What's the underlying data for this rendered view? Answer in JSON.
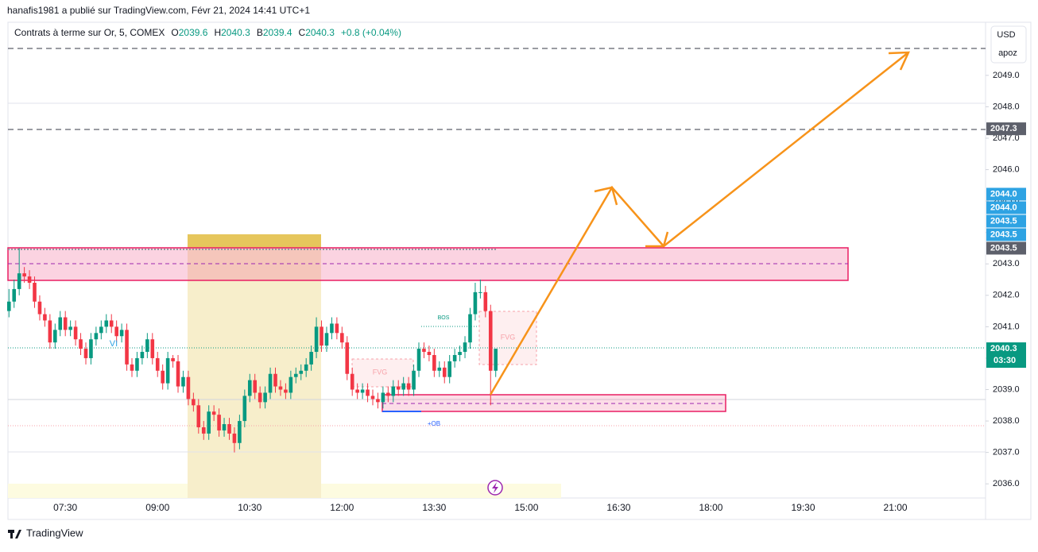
{
  "header": "hanafis1981 a publié sur TradingView.com, Févr 21, 2024 14:41 UTC+1",
  "chart_data": {
    "type": "candlestick",
    "title": "Contrats à terme sur Or, 5, COMEX",
    "ohlc_legend": [
      {
        "label": "O",
        "value": 2039.6
      },
      {
        "label": "H",
        "value": 2040.3
      },
      {
        "label": "B",
        "value": 2039.4
      },
      {
        "label": "C",
        "value": 2040.3
      }
    ],
    "change": "+0.8 (+0.04%)",
    "currency": "USD",
    "scale_label": "apoz",
    "x": [
      "06:35",
      "06:40",
      "06:45",
      "06:50",
      "06:55",
      "07:00",
      "07:05",
      "07:10",
      "07:15",
      "07:20",
      "07:25",
      "07:30",
      "07:35",
      "07:40",
      "07:45",
      "07:50",
      "07:55",
      "08:00",
      "08:05",
      "08:10",
      "08:15",
      "08:20",
      "08:25",
      "08:30",
      "08:35",
      "08:40",
      "08:45",
      "08:50",
      "08:55",
      "09:00",
      "09:05",
      "09:10",
      "09:15",
      "09:20",
      "09:25",
      "09:30",
      "09:35",
      "09:40",
      "09:45",
      "09:50",
      "09:55",
      "10:00",
      "10:05",
      "10:10",
      "10:15",
      "10:20",
      "10:25",
      "10:30",
      "10:35",
      "10:40",
      "10:45",
      "10:50",
      "10:55",
      "11:00",
      "11:05",
      "11:10",
      "11:15",
      "11:20",
      "11:25",
      "11:30",
      "11:35",
      "11:40",
      "11:45",
      "11:50",
      "11:55",
      "12:00",
      "12:05",
      "12:10",
      "12:15",
      "12:20",
      "12:25",
      "12:30",
      "12:35",
      "12:40",
      "12:45",
      "12:50",
      "12:55",
      "13:00",
      "13:05",
      "13:10",
      "13:15",
      "13:20",
      "13:25",
      "13:30",
      "13:35",
      "13:40",
      "13:45",
      "13:50",
      "13:55",
      "14:00",
      "14:05",
      "14:10",
      "14:15",
      "14:20",
      "14:25",
      "14:30"
    ],
    "open": [
      2041.5,
      2041.8,
      2042.2,
      2042.7,
      2042.6,
      2042.4,
      2041.8,
      2041.4,
      2041.2,
      2040.5,
      2040.9,
      2041.3,
      2040.9,
      2041.0,
      2040.6,
      2040.3,
      2040.0,
      2040.6,
      2040.8,
      2041.0,
      2041.2,
      2041.0,
      2040.7,
      2040.9,
      2039.8,
      2039.6,
      2040.0,
      2040.2,
      2040.6,
      2040.0,
      2039.6,
      2039.2,
      2040.0,
      2039.9,
      2039.1,
      2039.4,
      2038.7,
      2038.5,
      2037.8,
      2037.6,
      2038.3,
      2038.2,
      2037.7,
      2037.9,
      2037.6,
      2037.3,
      2038.0,
      2038.8,
      2039.3,
      2038.9,
      2038.6,
      2038.9,
      2039.5,
      2039.1,
      2039.0,
      2038.9,
      2039.4,
      2039.5,
      2039.6,
      2039.8,
      2040.2,
      2041.0,
      2040.4,
      2040.8,
      2041.1,
      2040.8,
      2040.5,
      2039.5,
      2039.0,
      2038.9,
      2039.0,
      2038.8,
      2038.7,
      2038.6,
      2038.9,
      2038.8,
      2039.1,
      2039.0,
      2039.2,
      2039.0,
      2039.6,
      2040.3,
      2040.2,
      2040.1,
      2039.6,
      2039.7,
      2039.4,
      2039.9,
      2040.1,
      2040.2,
      2040.5,
      2041.4,
      2042.1,
      2042.1,
      2041.5,
      2039.6
    ],
    "high": [
      2042.2,
      2042.5,
      2043.5,
      2042.9,
      2042.8,
      2042.6,
      2042.0,
      2041.6,
      2041.4,
      2041.1,
      2041.5,
      2041.5,
      2041.2,
      2041.2,
      2040.8,
      2040.5,
      2040.8,
      2041.0,
      2041.2,
      2041.4,
      2041.4,
      2041.2,
      2041.1,
      2041.1,
      2040.0,
      2040.2,
      2040.4,
      2040.8,
      2040.8,
      2040.2,
      2039.8,
      2040.2,
      2040.1,
      2040.1,
      2039.6,
      2039.6,
      2038.9,
      2038.7,
      2038.0,
      2038.5,
      2038.5,
      2038.4,
      2038.1,
      2038.1,
      2037.8,
      2038.2,
      2039.0,
      2039.5,
      2039.5,
      2039.1,
      2039.1,
      2039.7,
      2039.7,
      2039.3,
      2039.2,
      2039.6,
      2039.7,
      2039.8,
      2040.0,
      2040.4,
      2041.3,
      2041.2,
      2041.0,
      2041.3,
      2041.3,
      2041.0,
      2040.7,
      2039.7,
      2039.2,
      2039.2,
      2039.2,
      2039.0,
      2038.9,
      2039.1,
      2039.1,
      2039.3,
      2039.3,
      2039.4,
      2039.4,
      2039.8,
      2040.5,
      2040.5,
      2040.4,
      2040.3,
      2039.9,
      2039.9,
      2040.1,
      2040.3,
      2040.4,
      2040.7,
      2041.6,
      2042.4,
      2042.5,
      2042.3,
      2041.7,
      2040.3
    ],
    "low": [
      2041.3,
      2041.6,
      2042.0,
      2042.4,
      2042.2,
      2041.6,
      2041.2,
      2041.0,
      2040.3,
      2040.3,
      2040.7,
      2040.7,
      2040.7,
      2040.4,
      2040.1,
      2039.8,
      2039.8,
      2040.4,
      2040.6,
      2040.8,
      2040.8,
      2040.5,
      2040.5,
      2039.6,
      2039.4,
      2039.4,
      2039.8,
      2040.0,
      2039.8,
      2039.4,
      2039.0,
      2039.0,
      2039.7,
      2038.9,
      2038.9,
      2038.5,
      2038.3,
      2037.6,
      2037.4,
      2037.4,
      2038.0,
      2037.5,
      2037.5,
      2037.4,
      2037.0,
      2037.1,
      2037.8,
      2038.6,
      2038.7,
      2038.4,
      2038.4,
      2038.7,
      2038.9,
      2038.8,
      2038.7,
      2038.7,
      2039.2,
      2039.3,
      2039.4,
      2039.6,
      2040.0,
      2040.2,
      2040.2,
      2040.6,
      2040.6,
      2040.3,
      2039.3,
      2038.8,
      2038.7,
      2038.7,
      2038.6,
      2038.5,
      2038.4,
      2038.4,
      2038.6,
      2038.6,
      2038.8,
      2038.8,
      2038.8,
      2038.8,
      2039.4,
      2040.0,
      2039.9,
      2039.4,
      2039.4,
      2039.2,
      2039.2,
      2039.7,
      2039.9,
      2040.0,
      2040.3,
      2041.2,
      2041.9,
      2041.3,
      2038.5,
      2039.4
    ],
    "close": [
      2041.8,
      2042.2,
      2042.7,
      2042.6,
      2042.4,
      2041.8,
      2041.4,
      2041.2,
      2040.5,
      2040.9,
      2041.3,
      2040.9,
      2041.0,
      2040.6,
      2040.3,
      2040.0,
      2040.6,
      2040.8,
      2041.0,
      2041.2,
      2041.0,
      2040.7,
      2040.9,
      2039.8,
      2039.6,
      2040.0,
      2040.2,
      2040.6,
      2040.0,
      2039.6,
      2039.2,
      2040.0,
      2039.9,
      2039.1,
      2039.4,
      2038.7,
      2038.5,
      2037.8,
      2037.6,
      2038.3,
      2038.2,
      2037.7,
      2037.9,
      2037.6,
      2037.3,
      2038.0,
      2038.8,
      2039.3,
      2038.9,
      2038.6,
      2038.9,
      2039.5,
      2039.1,
      2039.0,
      2038.9,
      2039.4,
      2039.5,
      2039.6,
      2039.8,
      2040.2,
      2041.0,
      2040.4,
      2040.8,
      2041.1,
      2040.8,
      2040.5,
      2039.5,
      2039.0,
      2038.9,
      2039.0,
      2038.8,
      2038.7,
      2038.6,
      2038.9,
      2038.8,
      2039.1,
      2039.0,
      2039.2,
      2039.0,
      2039.6,
      2040.3,
      2040.2,
      2040.1,
      2039.6,
      2039.7,
      2039.4,
      2039.9,
      2040.1,
      2040.2,
      2040.5,
      2041.4,
      2042.1,
      2042.1,
      2041.5,
      2039.6,
      2040.3
    ],
    "colors": {
      "up": "#089981",
      "down": "#f23645"
    },
    "xlim": [
      "06:34",
      "22:28"
    ],
    "ylim": [
      2035.55,
      2050.64
    ],
    "xticks": [
      "07:30",
      "09:00",
      "10:30",
      "12:00",
      "13:30",
      "15:00",
      "16:30",
      "18:00",
      "19:30",
      "21:00"
    ],
    "yticks": [
      {
        "value": 2036,
        "label": "2036.0"
      },
      {
        "value": 2037,
        "label": "2037.0"
      },
      {
        "value": 2038,
        "label": "2038.0"
      },
      {
        "value": 2039,
        "label": "2039.0"
      },
      {
        "value": 2040,
        "label": "2040.0"
      },
      {
        "value": 2041,
        "label": "2041.0"
      },
      {
        "value": 2042,
        "label": "2042.0"
      },
      {
        "value": 2043,
        "label": "2043.0"
      },
      {
        "value": 2044,
        "label": "2044.0"
      },
      {
        "value": 2045,
        "label": "2045.0"
      },
      {
        "value": 2046,
        "label": "2046.0"
      },
      {
        "value": 2047,
        "label": "2047.0"
      },
      {
        "value": 2048,
        "label": "2048.0"
      },
      {
        "value": 2049,
        "label": "2049.0"
      }
    ],
    "price_tags": [
      {
        "value": 2047.3,
        "label": "2047.3",
        "color": "#5d606b"
      },
      {
        "value": 2044,
        "label": "2044.0",
        "color": "#2ea3e3"
      },
      {
        "value": 2044,
        "label": "2044.0",
        "color": "#2ea3e3"
      },
      {
        "value": 2043.5,
        "label": "2043.5",
        "color": "#2ea3e3"
      },
      {
        "value": 2043.5,
        "label": "2043.5",
        "color": "#2ea3e3"
      },
      {
        "value": 2043.5,
        "label": "2043.5",
        "color": "#5d606b"
      },
      {
        "value": 2040.3,
        "label": "2040.3",
        "color": "#089981"
      }
    ],
    "countdown": "03:30",
    "annotations": [
      "VI",
      "FVG",
      "BOS",
      "FVG",
      "+OB"
    ]
  },
  "footer": "TradingView"
}
